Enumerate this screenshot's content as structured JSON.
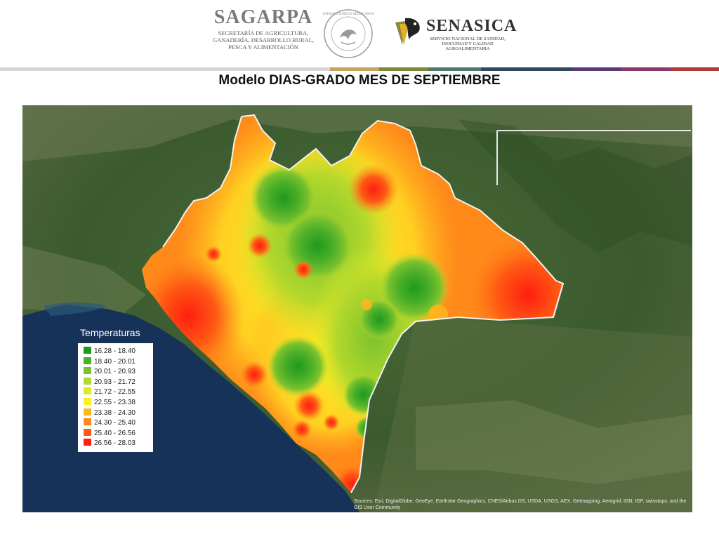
{
  "header": {
    "sagarpa": {
      "name": "SAGARPA",
      "subtitle_lines": [
        "SECRETARÍA DE AGRICULTURA,",
        "GANADERÍA, DESARROLLO RURAL,",
        "PESCA Y ALIMENTACIÓN"
      ]
    },
    "seal_text": "ESTADOS UNIDOS MEXICANOS",
    "senasica": {
      "name": "SENASICA",
      "subtitle_lines": [
        "SERVICIO NACIONAL DE SANIDAD,",
        "INOCUIDAD Y CALIDAD",
        "AGROALIMENTARIA"
      ]
    },
    "stripe_colors": [
      "#d6d6d6",
      "#c9a25c",
      "#7a8a3a",
      "#4f7a6a",
      "#2f4a5a",
      "#5a3a7a",
      "#8a3a6a",
      "#b03a3a"
    ]
  },
  "title": "Modelo DIAS-GRADO MES DE SEPTIEMBRE",
  "legend": {
    "title": "Temperaturas",
    "items": [
      {
        "label": "16.28 - 18.40",
        "color": "#1e9a1e"
      },
      {
        "label": "18.40 - 20.01",
        "color": "#4caf28"
      },
      {
        "label": "20.01 - 20.93",
        "color": "#7cc22e"
      },
      {
        "label": "20.93 - 21.72",
        "color": "#b4d82c"
      },
      {
        "label": "21.72 - 22.55",
        "color": "#dcea2a"
      },
      {
        "label": "22.55 - 23.38",
        "color": "#ffee22"
      },
      {
        "label": "23.38 - 24.30",
        "color": "#ffb51e"
      },
      {
        "label": "24.30 - 25.40",
        "color": "#ff8a1a"
      },
      {
        "label": "25.40 - 26.56",
        "color": "#ff5a14"
      },
      {
        "label": "26.56 - 28.03",
        "color": "#ff1e10"
      }
    ]
  },
  "attribution": "Sources: Esri, DigitalGlobe, GeoEye, Earthstar Geographics, CNES/Airbus DS, USDA, USGS, AEX, Getmapping, Aerogrid, IGN, IGP, swisstopo, and the GIS User Community"
}
